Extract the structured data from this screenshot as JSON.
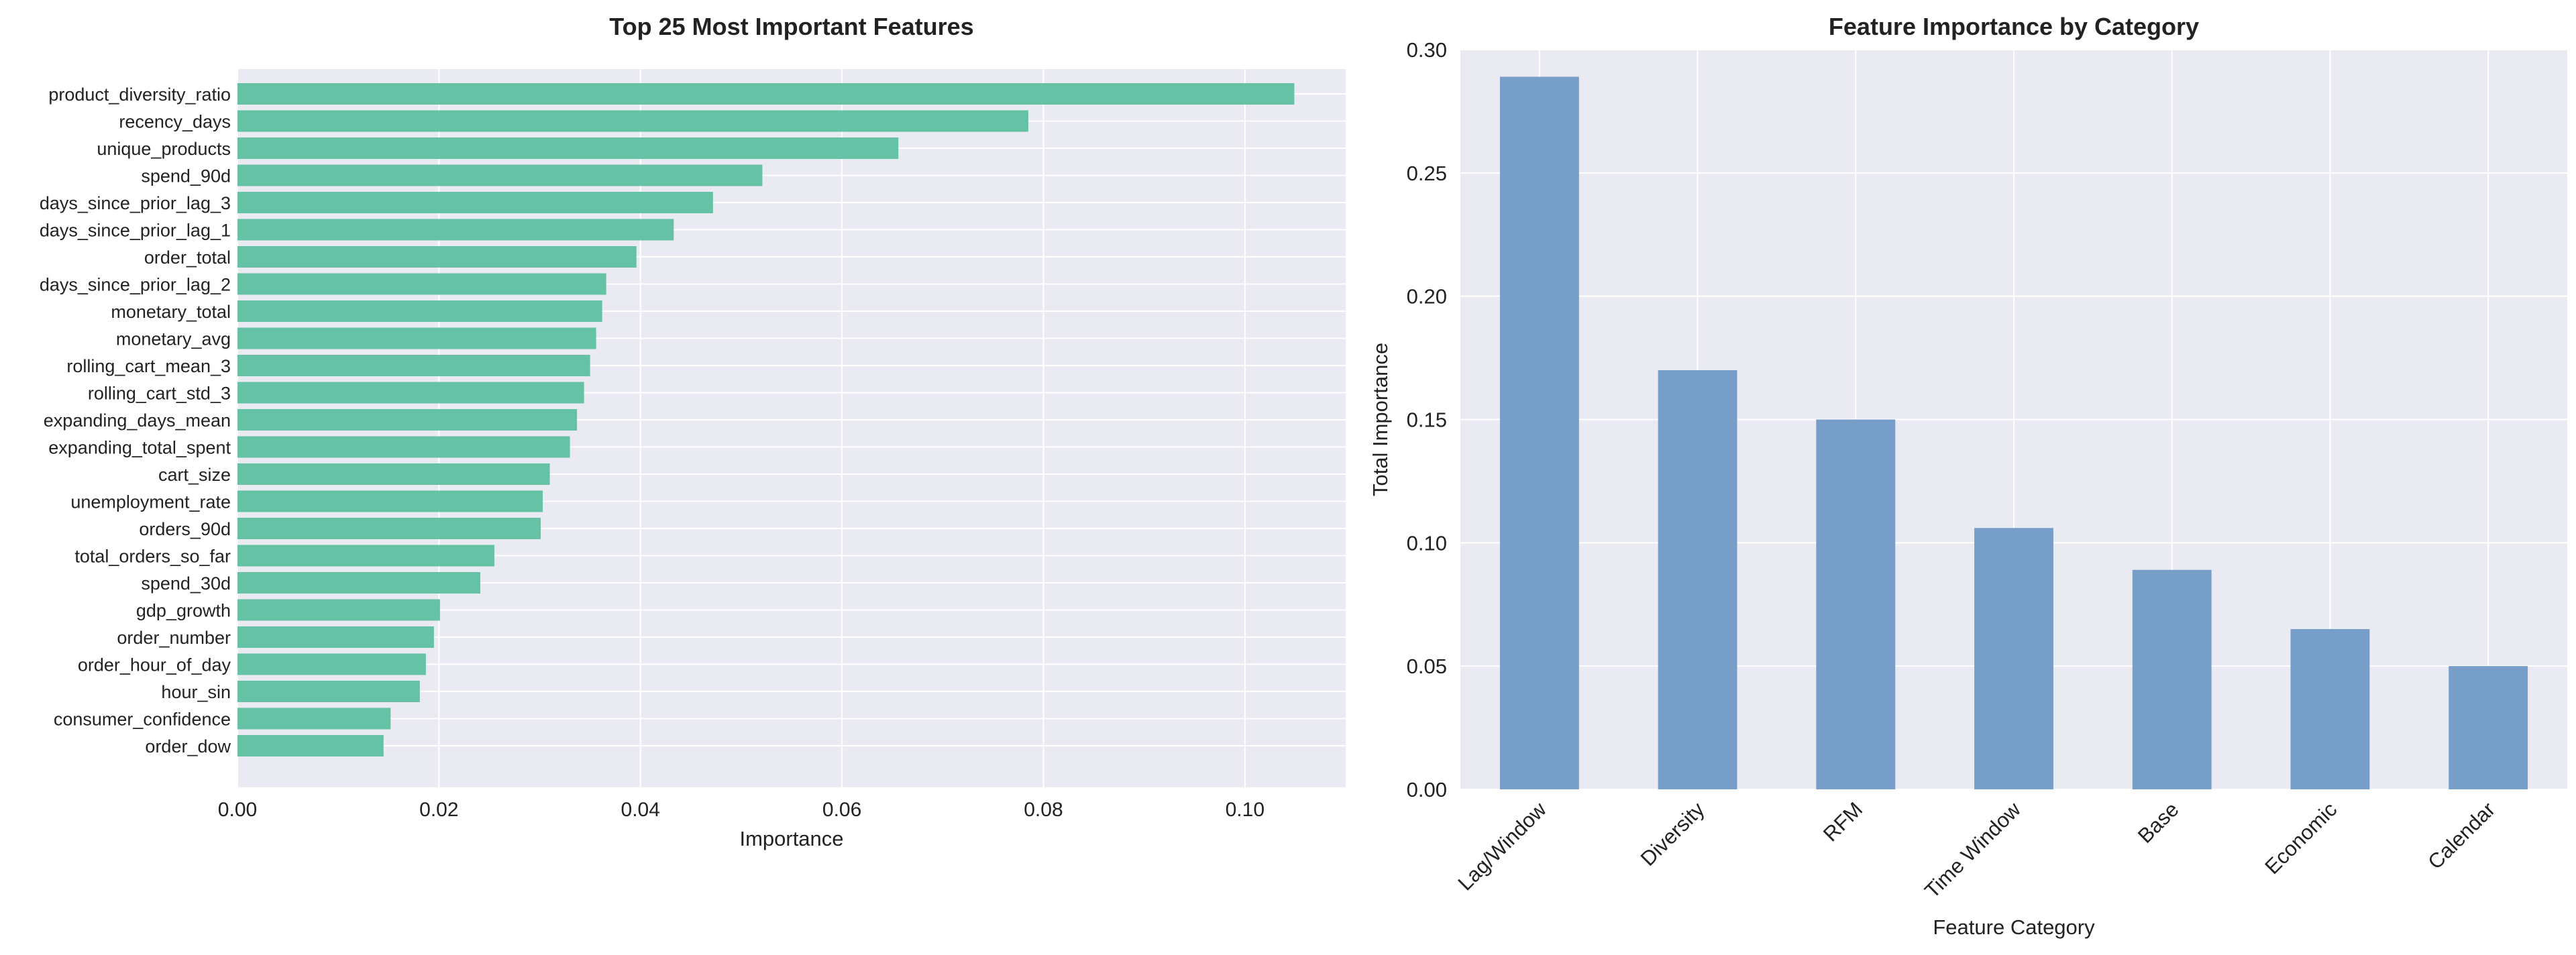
{
  "chart_data": [
    {
      "type": "bar",
      "orientation": "horizontal",
      "title": "Top 25 Most Important Features",
      "xlabel": "Importance",
      "ylabel": "",
      "xlim": [
        0,
        0.11
      ],
      "x_ticks": [
        0.0,
        0.02,
        0.04,
        0.06,
        0.08,
        0.1
      ],
      "x_tick_labels": [
        "0.00",
        "0.02",
        "0.04",
        "0.06",
        "0.08",
        "0.10"
      ],
      "grid": true,
      "bar_color": "#66c2a5",
      "categories": [
        "product_diversity_ratio",
        "recency_days",
        "unique_products",
        "spend_90d",
        "days_since_prior_lag_3",
        "days_since_prior_lag_1",
        "order_total",
        "days_since_prior_lag_2",
        "monetary_total",
        "monetary_avg",
        "rolling_cart_mean_3",
        "rolling_cart_std_3",
        "expanding_days_mean",
        "expanding_total_spent",
        "cart_size",
        "unemployment_rate",
        "orders_90d",
        "total_orders_so_far",
        "spend_30d",
        "gdp_growth",
        "order_number",
        "order_hour_of_day",
        "hour_sin",
        "consumer_confidence",
        "order_dow"
      ],
      "values": [
        0.1049,
        0.0785,
        0.0656,
        0.0521,
        0.0472,
        0.0433,
        0.0396,
        0.0366,
        0.0362,
        0.0356,
        0.035,
        0.0344,
        0.0337,
        0.033,
        0.031,
        0.0303,
        0.0301,
        0.0255,
        0.0241,
        0.0201,
        0.0195,
        0.0187,
        0.0181,
        0.0152,
        0.0145
      ]
    },
    {
      "type": "bar",
      "orientation": "vertical",
      "title": "Feature Importance by Category",
      "xlabel": "Feature Category",
      "ylabel": "Total Importance",
      "ylim": [
        0,
        0.3
      ],
      "y_ticks": [
        0.0,
        0.05,
        0.1,
        0.15,
        0.2,
        0.25,
        0.3
      ],
      "y_tick_labels": [
        "0.00",
        "0.05",
        "0.10",
        "0.15",
        "0.20",
        "0.25",
        "0.30"
      ],
      "grid": true,
      "bar_color": "#779ec8",
      "categories": [
        "Lag/Window",
        "Diversity",
        "RFM",
        "Time Window",
        "Base",
        "Economic",
        "Calendar"
      ],
      "values": [
        0.289,
        0.17,
        0.15,
        0.106,
        0.089,
        0.065,
        0.05
      ]
    }
  ],
  "style": {
    "plot_background": "#eaeaf2",
    "grid_color": "#ffffff",
    "text_color": "#222222"
  }
}
